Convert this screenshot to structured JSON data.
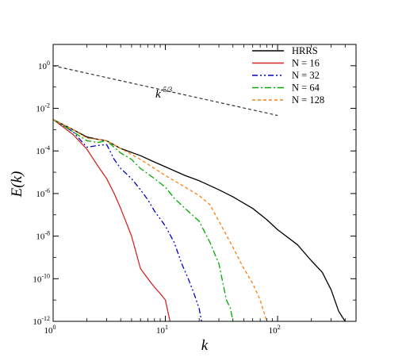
{
  "chart_data": {
    "type": "line",
    "xscale": "log",
    "yscale": "log",
    "xlim": [
      1,
      500
    ],
    "ylim": [
      1e-12,
      10
    ],
    "xlabel": "k",
    "ylabel": "E(k)",
    "legend_position": "top-right",
    "x_ticks": [
      {
        "value": 1,
        "base": "10",
        "exp": "0"
      },
      {
        "value": 10,
        "base": "10",
        "exp": "1"
      },
      {
        "value": 100,
        "base": "10",
        "exp": "2"
      }
    ],
    "y_ticks": [
      {
        "value": 1,
        "base": "10",
        "exp": "0"
      },
      {
        "value": 0.01,
        "base": "10",
        "exp": "-2"
      },
      {
        "value": 0.0001,
        "base": "10",
        "exp": "-4"
      },
      {
        "value": 1e-06,
        "base": "10",
        "exp": "-6"
      },
      {
        "value": 1e-08,
        "base": "10",
        "exp": "-8"
      },
      {
        "value": 1e-10,
        "base": "10",
        "exp": "-10"
      },
      {
        "value": 1e-12,
        "base": "10",
        "exp": "-12"
      }
    ],
    "annotation": {
      "base": "k",
      "exp": "-5/3"
    },
    "reference_line": {
      "x": [
        1,
        100
      ],
      "y": [
        1,
        0.00464
      ],
      "color": "#333333",
      "dash": "4,3"
    },
    "series": [
      {
        "name": "HRRS",
        "color": "#000000",
        "dash": "",
        "x": [
          1,
          1.5,
          2,
          2.5,
          3,
          4,
          6,
          8,
          10,
          15,
          20,
          30,
          40,
          60,
          80,
          100,
          150,
          200,
          250,
          300,
          350,
          380,
          400
        ],
        "y": [
          0.003,
          0.001,
          0.00045,
          0.00035,
          0.0003,
          0.00013,
          6e-05,
          3e-05,
          1.8e-05,
          7e-06,
          4e-06,
          1.5e-06,
          7e-07,
          2e-07,
          6e-08,
          2e-08,
          4e-09,
          7e-10,
          2e-10,
          3e-11,
          3e-12,
          1.5e-12,
          1e-12
        ]
      },
      {
        "name": "N = 16",
        "color": "#d62728",
        "dash": "",
        "x": [
          1,
          1.5,
          2,
          2.5,
          3,
          3.5,
          4,
          5,
          6,
          7,
          8,
          9,
          10,
          11
        ],
        "y": [
          0.003,
          0.0006,
          0.00012,
          2e-05,
          5e-06,
          1e-06,
          2e-07,
          1e-08,
          3e-10,
          1e-10,
          4e-11,
          2e-11,
          1e-11,
          1e-12
        ]
      },
      {
        "name": "N = 32",
        "color": "#0000cc",
        "dash": "7,3,2,3,2,3",
        "x": [
          1,
          1.5,
          2,
          2.5,
          3,
          3.5,
          4,
          5,
          6,
          7,
          8,
          10,
          12,
          14,
          16,
          18,
          20,
          21
        ],
        "y": [
          0.003,
          0.0008,
          0.00015,
          0.00018,
          0.0002,
          4e-05,
          1.5e-05,
          5e-06,
          1.5e-06,
          5e-07,
          1.5e-07,
          3e-08,
          5e-09,
          5e-10,
          1e-10,
          2e-11,
          4e-12,
          1e-12
        ]
      },
      {
        "name": "N = 64",
        "color": "#00aa00",
        "dash": "8,3,2,3",
        "x": [
          1,
          1.5,
          2,
          2.5,
          3,
          4,
          5,
          6,
          8,
          10,
          12,
          15,
          20,
          25,
          30,
          35,
          38,
          40
        ],
        "y": [
          0.003,
          0.0008,
          0.0003,
          0.00025,
          0.0003,
          8e-05,
          4e-05,
          1.5e-05,
          5e-06,
          2e-06,
          6e-07,
          2e-07,
          5e-08,
          5e-09,
          5e-10,
          1e-11,
          4e-12,
          1e-12
        ]
      },
      {
        "name": "N = 128",
        "color": "#ff7f0e",
        "dash": "4,3",
        "x": [
          1,
          1.5,
          2,
          2.5,
          3,
          4,
          6,
          8,
          10,
          15,
          20,
          25,
          30,
          40,
          50,
          60,
          70,
          80
        ],
        "y": [
          0.003,
          0.001,
          0.0004,
          0.00035,
          0.0003,
          0.00013,
          4e-05,
          1.5e-05,
          7e-06,
          2e-06,
          8e-07,
          3e-07,
          5e-08,
          3e-09,
          3e-10,
          6e-11,
          1e-11,
          1e-12
        ]
      }
    ]
  }
}
